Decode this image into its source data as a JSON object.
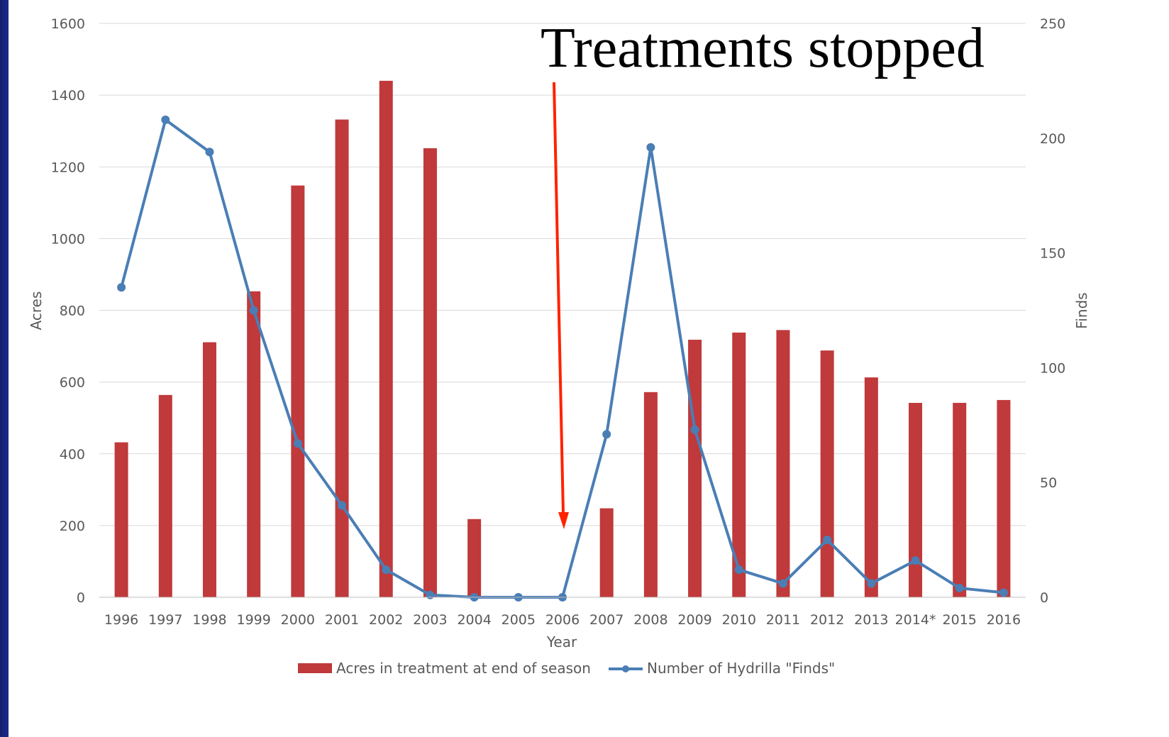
{
  "chart_data": {
    "type": "bar",
    "categories": [
      "1996",
      "1997",
      "1998",
      "1999",
      "2000",
      "2001",
      "2002",
      "2003",
      "2004",
      "2005",
      "2006",
      "2007",
      "2008",
      "2009",
      "2010",
      "2011",
      "2012",
      "2013",
      "2014*",
      "2015",
      "2016"
    ],
    "series": [
      {
        "name": "Acres in treatment at end of season",
        "type": "bar",
        "axis": "left",
        "values": [
          432,
          564,
          711,
          853,
          1148,
          1332,
          1440,
          1252,
          218,
          0,
          0,
          248,
          572,
          718,
          738,
          745,
          688,
          613,
          542,
          542,
          550
        ]
      },
      {
        "name": "Number of Hydrilla \"Finds\"",
        "type": "line",
        "axis": "right",
        "values": [
          135,
          208,
          194,
          125,
          67,
          40,
          12,
          1,
          0,
          0,
          0,
          71,
          196,
          73,
          12,
          6,
          25,
          6,
          16,
          4,
          2
        ]
      }
    ],
    "xlabel": "Year",
    "ylabel": "Acres",
    "y2label": "Finds",
    "ylim": [
      0,
      1600
    ],
    "yticks": [
      0,
      200,
      400,
      600,
      800,
      1000,
      1200,
      1400,
      1600
    ],
    "y2lim": [
      0,
      250
    ],
    "y2ticks": [
      0,
      50,
      100,
      150,
      200,
      250
    ],
    "grid": true,
    "legend_position": "bottom",
    "annotation": {
      "text": "Treatments stopped",
      "points_to": "2006"
    },
    "colors": {
      "bar": "#c0393b",
      "line": "#4a7eb5",
      "arrow": "#ff2200",
      "grid": "#d9d9d9",
      "text": "#595959"
    }
  }
}
